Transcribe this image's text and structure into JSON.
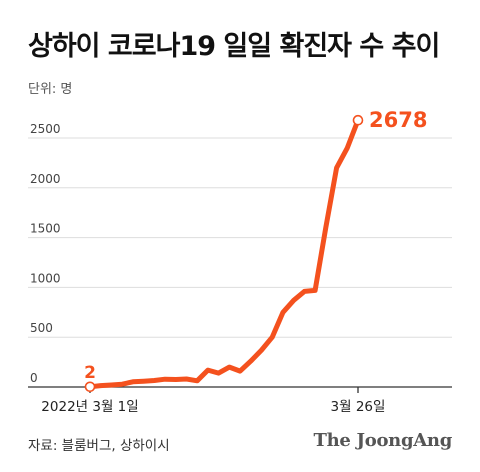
{
  "header": {
    "title": "상하이 코로나19 일일 확진자 수 추이",
    "unit": "단위: 명"
  },
  "footer": {
    "source": "자료: 블룸버그, 상하이시",
    "logo": "The JoongAng"
  },
  "colors": {
    "line": "#f4511e",
    "grid": "#dddddd",
    "axis": "#333333",
    "tick_text": "#444444"
  },
  "chart_data": {
    "type": "line",
    "title": "상하이 코로나19 일일 확진자 수 추이",
    "ylabel": "단위: 명",
    "xlabel": "",
    "ylim": [
      0,
      2600
    ],
    "yticks": [
      0,
      500,
      1000,
      1500,
      2000,
      2500
    ],
    "grid": true,
    "x_tick_labels": [
      {
        "day": 1,
        "label": "2022년 3월 1일"
      },
      {
        "day": 26,
        "label": "3월 26일"
      }
    ],
    "start_annotation": "2",
    "end_annotation": "2678",
    "series": [
      {
        "x": [
          1,
          2,
          3,
          4,
          5,
          6,
          7,
          8,
          9,
          10,
          11,
          12,
          13,
          14,
          15,
          16,
          17,
          18,
          19,
          20,
          21,
          22,
          23,
          24,
          25,
          26
        ],
        "y": [
          2,
          14,
          20,
          28,
          52,
          58,
          65,
          78,
          75,
          80,
          62,
          170,
          140,
          200,
          160,
          260,
          370,
          500,
          750,
          870,
          960,
          970,
          1600,
          2200,
          2400,
          2678
        ]
      }
    ]
  }
}
